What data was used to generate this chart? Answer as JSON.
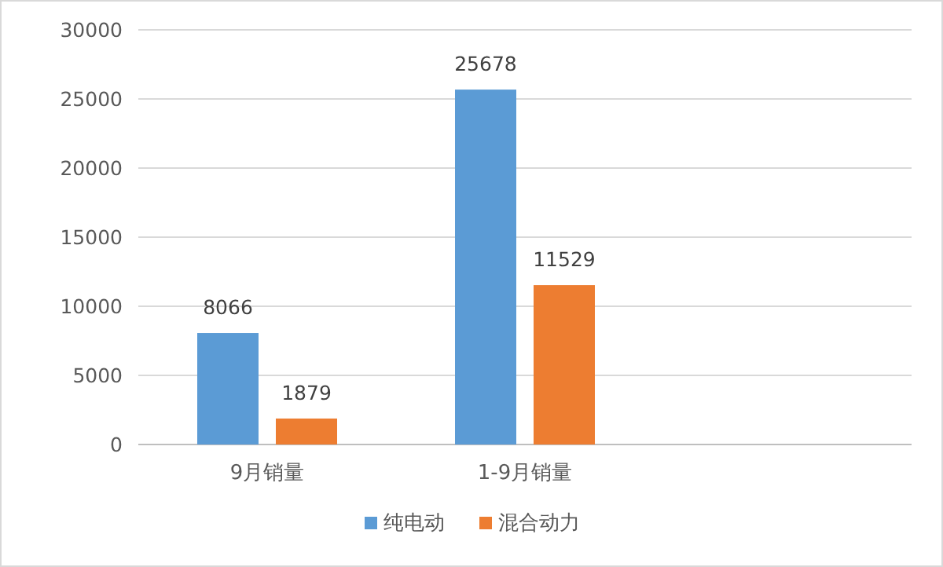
{
  "chart_data": {
    "type": "bar",
    "categories": [
      "9月销量",
      "1-9月销量",
      null
    ],
    "series": [
      {
        "name": "纯电动",
        "color": "#5b9bd5",
        "values": [
          8066,
          25678,
          null
        ]
      },
      {
        "name": "混合动力",
        "color": "#ed7d31",
        "values": [
          1879,
          11529,
          null
        ]
      }
    ],
    "ylim": [
      0,
      30000
    ],
    "yticks": [
      0,
      5000,
      10000,
      15000,
      20000,
      25000,
      30000
    ],
    "grid": "y",
    "legend": "bottom",
    "data_labels": true
  }
}
